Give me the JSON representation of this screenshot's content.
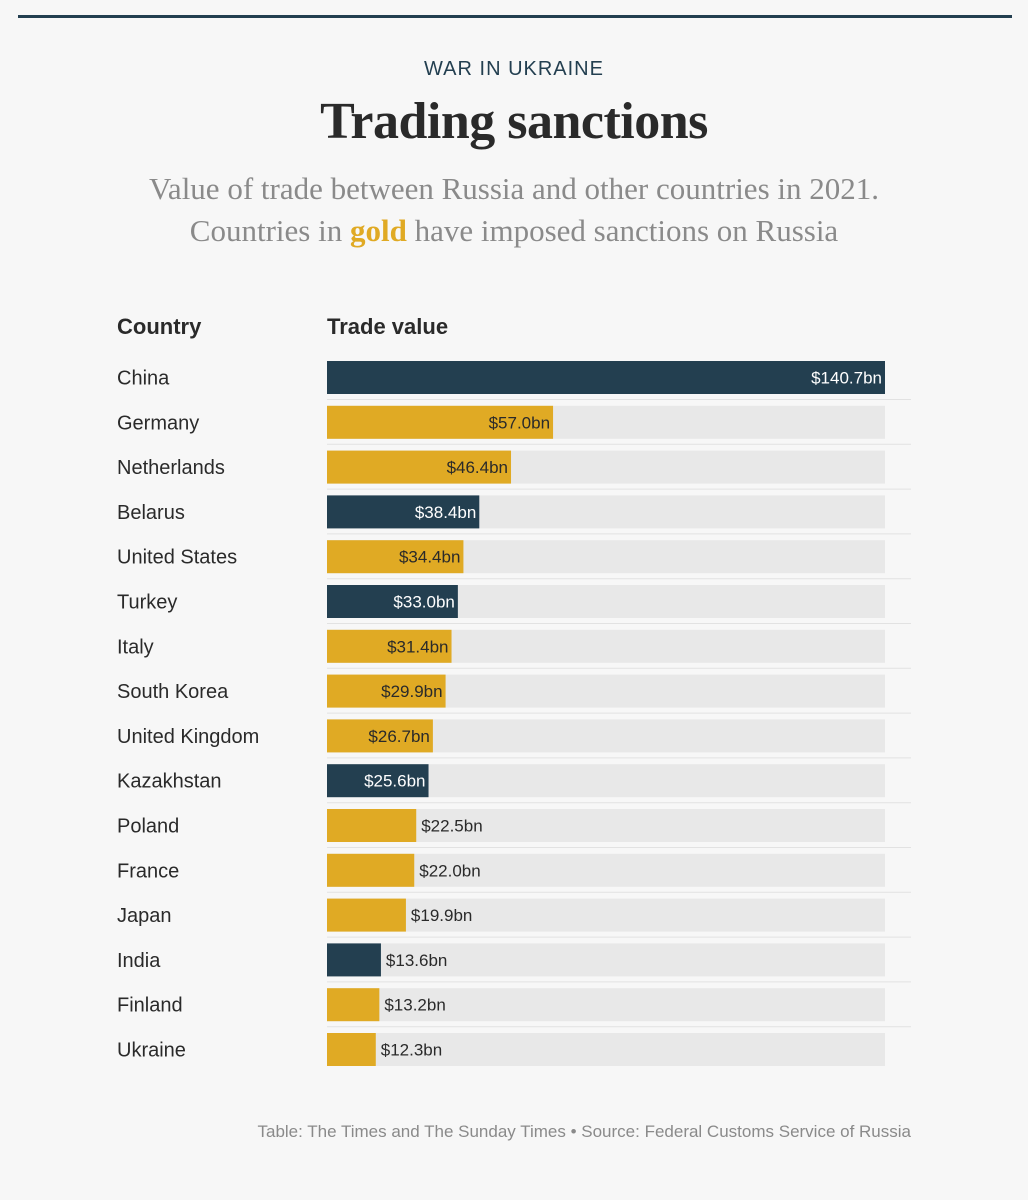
{
  "header": {
    "kicker": "WAR IN UKRAINE",
    "title": "Trading sanctions",
    "subtitle_line1": "Value of trade between Russia and other countries in 2021.",
    "subtitle_pre": "Countries in ",
    "subtitle_gold": "gold",
    "subtitle_post": " have imposed sanctions on Russia"
  },
  "columns": {
    "country": "Country",
    "value": "Trade value"
  },
  "colors": {
    "sanctioning": "#e0aa24",
    "non_sanctioning": "#233f50",
    "track": "#e8e8e8",
    "row_rule": "#e2e2e2",
    "text": "#2a2a2a"
  },
  "chart_data": {
    "type": "bar",
    "orientation": "horizontal",
    "title": "Trading sanctions",
    "xlabel": "Trade value",
    "ylabel": "Country",
    "xlim": [
      0,
      140.7
    ],
    "unit": "bn USD",
    "categories": [
      "China",
      "Germany",
      "Netherlands",
      "Belarus",
      "United States",
      "Turkey",
      "Italy",
      "South Korea",
      "United Kingdom",
      "Kazakhstan",
      "Poland",
      "France",
      "Japan",
      "India",
      "Finland",
      "Ukraine"
    ],
    "values": [
      140.7,
      57.0,
      46.4,
      38.4,
      34.4,
      33.0,
      31.4,
      29.9,
      26.7,
      25.6,
      22.5,
      22.0,
      19.9,
      13.6,
      13.2,
      12.3
    ],
    "labels": [
      "$140.7bn",
      "$57.0bn",
      "$46.4bn",
      "$38.4bn",
      "$34.4bn",
      "$33.0bn",
      "$31.4bn",
      "$29.9bn",
      "$26.7bn",
      "$25.6bn",
      "$22.5bn",
      "$22.0bn",
      "$19.9bn",
      "$13.6bn",
      "$13.2bn",
      "$12.3bn"
    ],
    "sanctions": [
      false,
      true,
      true,
      false,
      true,
      false,
      true,
      true,
      true,
      false,
      true,
      true,
      true,
      false,
      true,
      true
    ]
  },
  "footer": {
    "source": "Table: The Times and The Sunday Times • Source: Federal Customs Service of Russia"
  }
}
